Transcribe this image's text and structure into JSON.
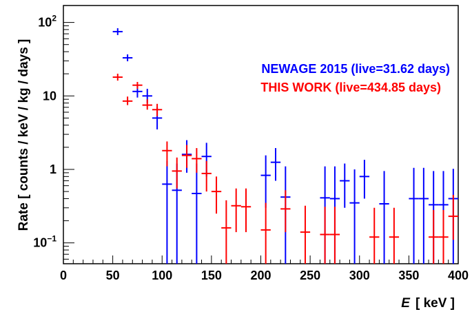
{
  "chart_data": {
    "type": "scatter",
    "xlabel": "[ keV ]",
    "xlabel_var": "E",
    "ylabel": "Rate [ counts / keV / kg / days ]",
    "xlim": [
      0,
      400
    ],
    "ylim": [
      0.052,
      170
    ],
    "yscale": "log",
    "x_ticks": [
      "0",
      "50",
      "100",
      "150",
      "200",
      "250",
      "300",
      "350",
      "400"
    ],
    "y_ticks": [
      {
        "base": "10",
        "exp": "2",
        "value": 100
      },
      {
        "base": "10",
        "exp": "",
        "value": 10
      },
      {
        "base": "1",
        "exp": "",
        "value": 1
      },
      {
        "base": "10",
        "exp": "−1",
        "value": 0.1
      }
    ],
    "grid": false,
    "legend_position": "top-right",
    "series": [
      {
        "name": "NEWAGE 2015 (live=31.62 days)",
        "color": "#0000ff",
        "x": [
          55,
          65,
          75,
          85,
          95,
          105,
          115,
          125,
          135,
          145,
          205,
          215,
          225,
          265,
          275,
          285,
          295,
          305,
          325,
          355,
          365,
          375,
          385,
          395
        ],
        "y": [
          75,
          33,
          11.5,
          10,
          5,
          0.63,
          0.52,
          1.6,
          0.47,
          1.5,
          0.83,
          1.25,
          0.42,
          0.41,
          0.4,
          0.7,
          0.35,
          0.8,
          0.34,
          0.4,
          0.4,
          0.33,
          0.33,
          0.4
        ],
        "ylo": [
          null,
          null,
          9.5,
          8,
          3.5,
          0.05,
          0.05,
          0.9,
          0.05,
          0.8,
          0.3,
          0.7,
          0.05,
          0.05,
          0.05,
          0.3,
          0.05,
          0.4,
          0.05,
          0.05,
          0.05,
          0.05,
          0.05,
          0.05
        ],
        "yhi": [
          null,
          null,
          14,
          12.5,
          7,
          1.3,
          1.2,
          2.5,
          1.2,
          2.3,
          1.55,
          1.95,
          1.1,
          1.1,
          1.1,
          1.2,
          1.0,
          1.35,
          0.95,
          1.05,
          1.05,
          0.95,
          0.95,
          1.02
        ]
      },
      {
        "name": "THIS WORK (live=434.85 days)",
        "color": "#ff0000",
        "x": [
          55,
          65,
          75,
          85,
          95,
          105,
          115,
          125,
          135,
          145,
          155,
          165,
          175,
          185,
          205,
          225,
          245,
          265,
          275,
          315,
          335,
          375,
          385,
          395
        ],
        "y": [
          18,
          8.5,
          14,
          7.5,
          6.5,
          1.8,
          0.95,
          1.55,
          1.4,
          0.88,
          0.5,
          0.16,
          0.32,
          0.31,
          0.15,
          0.29,
          0.14,
          0.13,
          0.13,
          0.12,
          0.12,
          0.12,
          0.12,
          0.23
        ],
        "ylo": [
          null,
          7.5,
          12.5,
          6.5,
          5.3,
          1.1,
          0.55,
          1.05,
          0.9,
          0.5,
          0.25,
          0.05,
          0.14,
          0.14,
          0.05,
          0.14,
          0.05,
          0.05,
          0.05,
          0.05,
          0.05,
          0.05,
          0.05,
          0.11
        ],
        "yhi": [
          null,
          9.8,
          15.5,
          9,
          7.8,
          2.4,
          1.45,
          2.15,
          1.95,
          1.3,
          0.8,
          0.38,
          0.55,
          0.55,
          0.35,
          0.52,
          0.32,
          0.31,
          0.31,
          0.3,
          0.3,
          0.28,
          0.28,
          0.45
        ]
      }
    ]
  }
}
